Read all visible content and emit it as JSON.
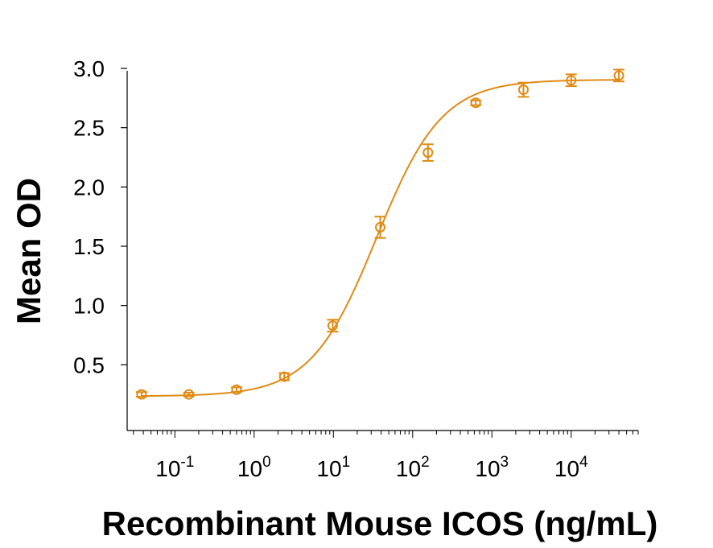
{
  "chart_data": {
    "type": "scatter",
    "title": "",
    "xlabel": "Recombinant Mouse ICOS (ng/mL)",
    "ylabel": "Mean OD",
    "x_scale": "log",
    "xlim": [
      0.025,
      70000
    ],
    "ylim": [
      0.0,
      3.0
    ],
    "x_ticks": [
      {
        "value": 0.1,
        "base": "10",
        "exp": "-1"
      },
      {
        "value": 1,
        "base": "10",
        "exp": "0"
      },
      {
        "value": 10,
        "base": "10",
        "exp": "1"
      },
      {
        "value": 100,
        "base": "10",
        "exp": "2"
      },
      {
        "value": 1000,
        "base": "10",
        "exp": "3"
      },
      {
        "value": 10000,
        "base": "10",
        "exp": "4"
      }
    ],
    "y_ticks": [
      {
        "value": 0.5,
        "label": "0.5"
      },
      {
        "value": 1.0,
        "label": "1.0"
      },
      {
        "value": 1.5,
        "label": "1.5"
      },
      {
        "value": 2.0,
        "label": "2.0"
      },
      {
        "value": 2.5,
        "label": "2.5"
      },
      {
        "value": 3.0,
        "label": "3.0"
      }
    ],
    "grid": false,
    "color": "#E08A14",
    "series": [
      {
        "points": [
          {
            "x": 0.038,
            "y": 0.25,
            "err": 0.02
          },
          {
            "x": 0.15,
            "y": 0.25,
            "err": 0.015
          },
          {
            "x": 0.6,
            "y": 0.29,
            "err": 0.02
          },
          {
            "x": 2.4,
            "y": 0.4,
            "err": 0.03
          },
          {
            "x": 9.8,
            "y": 0.83,
            "err": 0.05
          },
          {
            "x": 39,
            "y": 1.66,
            "err": 0.09
          },
          {
            "x": 156,
            "y": 2.29,
            "err": 0.07
          },
          {
            "x": 625,
            "y": 2.71,
            "err": 0.02
          },
          {
            "x": 2500,
            "y": 2.82,
            "err": 0.06
          },
          {
            "x": 10000,
            "y": 2.9,
            "err": 0.05
          },
          {
            "x": 40000,
            "y": 2.94,
            "err": 0.05
          }
        ],
        "fit": {
          "model": "4PL",
          "bottom": 0.235,
          "top": 2.905,
          "ec50": 35,
          "hill": 1.05
        }
      }
    ]
  }
}
